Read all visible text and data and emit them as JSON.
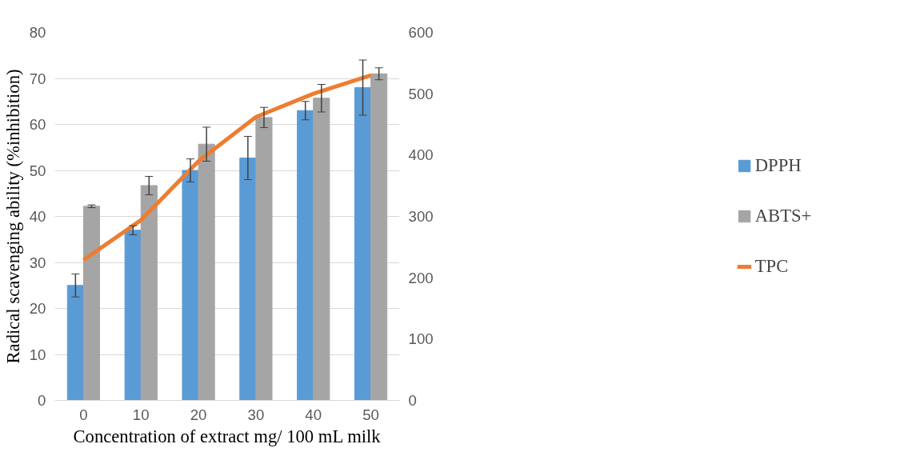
{
  "chart_data": {
    "type": "bar",
    "xlabel": "Concentration of extract mg/ 100 mL milk",
    "ylabel": "Radical scavenging ability (%inhibition)",
    "categories": [
      "0",
      "10",
      "20",
      "30",
      "40",
      "50"
    ],
    "series": [
      {
        "name": "DPPH",
        "color": "#5b9bd5",
        "values": [
          25,
          37,
          50,
          52.7,
          63,
          68
        ],
        "errors": [
          2.5,
          1,
          2.5,
          4.7,
          2,
          6
        ]
      },
      {
        "name": "ABTS+",
        "color": "#a5a5a5",
        "values": [
          42.2,
          46.7,
          55.7,
          61.5,
          65.7,
          71
        ],
        "errors": [
          0.3,
          2,
          3.7,
          2.2,
          3,
          1.3
        ]
      },
      {
        "name": "TPC",
        "type": "line",
        "axis": "y2",
        "color": "#ed7d31",
        "values": [
          229,
          294,
          390,
          462,
          500,
          530
        ]
      }
    ],
    "ylim": [
      0,
      80
    ],
    "yticks": [
      0,
      10,
      20,
      30,
      40,
      50,
      60,
      70,
      80
    ],
    "y2lim": [
      0,
      600
    ],
    "y2ticks": [
      0,
      100,
      200,
      300,
      400,
      500,
      600
    ],
    "grid": "y",
    "legend": "right",
    "marker": "none",
    "line_style": "solid"
  }
}
